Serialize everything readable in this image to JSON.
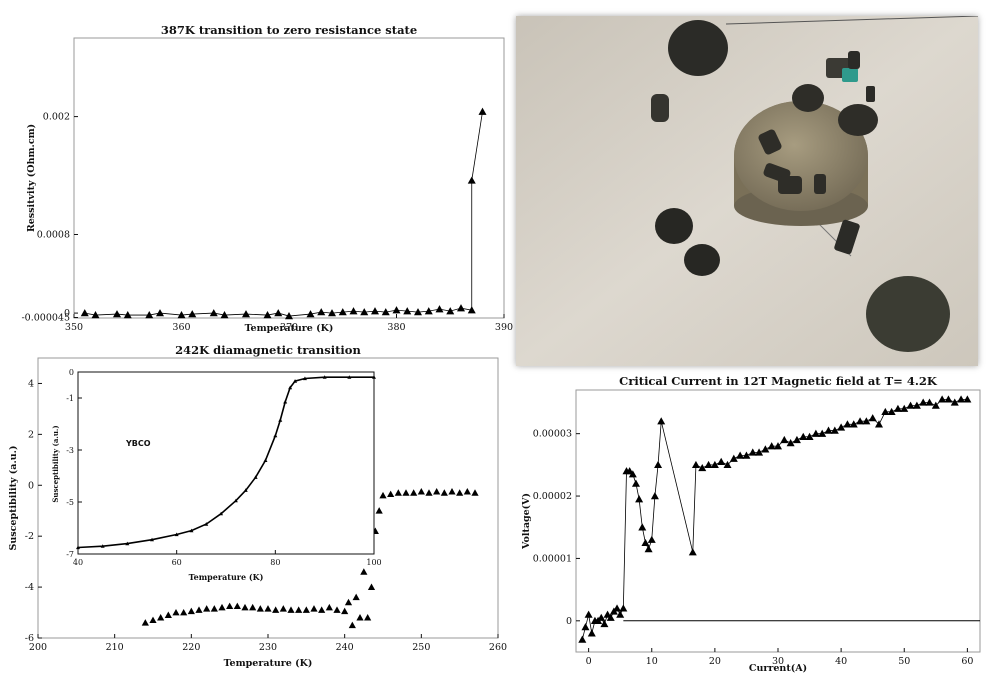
{
  "chart_data": [
    {
      "id": "resistivity",
      "type": "scatter",
      "title": "387K transition to zero resistance state",
      "xlabel": "Temperature (K)",
      "ylabel": "Ressitvity (Ohm.cm)",
      "xlim": [
        350,
        390
      ],
      "ylim": [
        -5e-05,
        0.0028
      ],
      "xticks": [
        350,
        360,
        370,
        380,
        390
      ],
      "yticks": [
        {
          "value": 0.002,
          "label": "0.002"
        },
        {
          "value": 0.0008,
          "label": "0.0008"
        },
        {
          "value": 0.0,
          "label": "0"
        },
        {
          "value": -4.5e-05,
          "label": "-0.000045"
        }
      ],
      "x": [
        351,
        352,
        354,
        355,
        357,
        358,
        360,
        361,
        363,
        364,
        366,
        368,
        369,
        370,
        372,
        373,
        374,
        375,
        376,
        377,
        378,
        379,
        380,
        381,
        382,
        383,
        384,
        385,
        386,
        387,
        387,
        388
      ],
      "y": [
        0.0,
        -2e-05,
        -1e-05,
        -2e-05,
        -2e-05,
        0.0,
        -2e-05,
        -1e-05,
        0.0,
        -2e-05,
        -1e-05,
        -2e-05,
        0.0,
        -3e-05,
        -1e-05,
        1e-05,
        0.0,
        1e-05,
        2e-05,
        1e-05,
        2e-05,
        1e-05,
        3e-05,
        2e-05,
        1e-05,
        2e-05,
        4e-05,
        2e-05,
        5e-05,
        3e-05,
        0.00135,
        0.00205
      ]
    },
    {
      "id": "susceptibility",
      "type": "scatter",
      "title": "242K diamagnetic transition",
      "xlabel": "Temperature (K)",
      "ylabel": "Susceptibility (a.u.)",
      "xlim": [
        200,
        260
      ],
      "ylim": [
        -6,
        5
      ],
      "xticks": [
        200,
        210,
        220,
        230,
        240,
        250,
        260
      ],
      "yticks": [
        4,
        2,
        0,
        -2,
        -4,
        -6
      ],
      "x": [
        214,
        215,
        216,
        217,
        218,
        219,
        220,
        221,
        222,
        223,
        224,
        225,
        226,
        227,
        228,
        229,
        230,
        231,
        232,
        233,
        234,
        235,
        236,
        237,
        238,
        239,
        240,
        240.5,
        241,
        241.5,
        242,
        242.5,
        243,
        243.5,
        244,
        244.5,
        245,
        246,
        247,
        248,
        249,
        250,
        251,
        252,
        253,
        254,
        255,
        256,
        257
      ],
      "y": [
        -5.4,
        -5.3,
        -5.2,
        -5.1,
        -5.0,
        -5.0,
        -4.95,
        -4.9,
        -4.85,
        -4.85,
        -4.8,
        -4.75,
        -4.75,
        -4.8,
        -4.8,
        -4.85,
        -4.85,
        -4.9,
        -4.85,
        -4.9,
        -4.9,
        -4.9,
        -4.85,
        -4.9,
        -4.8,
        -4.9,
        -4.95,
        -4.6,
        -5.5,
        -4.4,
        -5.2,
        -3.4,
        -5.2,
        -4.0,
        -1.8,
        -1.0,
        -0.4,
        -0.35,
        -0.3,
        -0.3,
        -0.3,
        -0.25,
        -0.3,
        -0.25,
        -0.3,
        -0.25,
        -0.3,
        -0.25,
        -0.3
      ]
    },
    {
      "id": "inset-ybco",
      "type": "line",
      "label": "YBCO",
      "xlabel": "Temperature (K)",
      "ylabel": "Susceptibility (a.u.)",
      "xlim": [
        40,
        100
      ],
      "ylim": [
        -7,
        0
      ],
      "xticks": [
        40,
        60,
        80,
        100
      ],
      "yticks": [
        0,
        -1,
        -3,
        -5,
        -7
      ],
      "x": [
        40,
        45,
        50,
        55,
        60,
        63,
        66,
        69,
        72,
        74,
        76,
        78,
        80,
        81,
        82,
        83,
        84,
        86,
        90,
        95,
        100
      ],
      "y": [
        -6.75,
        -6.7,
        -6.6,
        -6.45,
        -6.25,
        -6.1,
        -5.85,
        -5.45,
        -4.95,
        -4.55,
        -4.05,
        -3.4,
        -2.45,
        -1.85,
        -1.15,
        -0.6,
        -0.35,
        -0.25,
        -0.2,
        -0.2,
        -0.2
      ]
    },
    {
      "id": "critical-current",
      "type": "scatter",
      "title": "Critical Current in 12T Magnetic field at T= 4.2K",
      "xlabel": "Current(A)",
      "ylabel": "Voltage(V)",
      "xlim": [
        -2,
        62
      ],
      "ylim": [
        -5e-06,
        3.7e-05
      ],
      "xticks": [
        0,
        10,
        20,
        30,
        40,
        50,
        60
      ],
      "yticks": [
        {
          "value": 0.0,
          "label": "0"
        },
        {
          "value": 1e-05,
          "label": "0.00001"
        },
        {
          "value": 2e-05,
          "label": "0.00002"
        },
        {
          "value": 3e-05,
          "label": "0.00003"
        }
      ],
      "x": [
        -1,
        -0.5,
        0,
        0.5,
        1,
        1.5,
        2,
        2.5,
        3,
        3.5,
        4,
        4.5,
        5,
        5.5,
        6,
        6.5,
        7,
        7.5,
        8,
        8.5,
        9,
        9.5,
        10,
        10.5,
        11,
        11.5,
        16.5,
        17,
        18,
        19,
        20,
        21,
        22,
        23,
        24,
        25,
        26,
        27,
        28,
        29,
        30,
        31,
        32,
        33,
        34,
        35,
        36,
        37,
        38,
        39,
        40,
        41,
        42,
        43,
        44,
        45,
        46,
        47,
        48,
        49,
        50,
        51,
        52,
        53,
        54,
        55,
        56,
        57,
        58,
        59,
        60
      ],
      "y": [
        -3e-06,
        -1e-06,
        1e-06,
        -2e-06,
        0.0,
        0.0,
        5e-07,
        -5e-07,
        1e-06,
        5e-07,
        1.5e-06,
        2e-06,
        1e-06,
        2e-06,
        2.4e-05,
        2.4e-05,
        2.35e-05,
        2.2e-05,
        1.95e-05,
        1.5e-05,
        1.25e-05,
        1.15e-05,
        1.3e-05,
        2e-05,
        2.5e-05,
        3.2e-05,
        1.1e-05,
        2.5e-05,
        2.45e-05,
        2.5e-05,
        2.5e-05,
        2.55e-05,
        2.5e-05,
        2.6e-05,
        2.65e-05,
        2.65e-05,
        2.7e-05,
        2.7e-05,
        2.75e-05,
        2.8e-05,
        2.8e-05,
        2.9e-05,
        2.85e-05,
        2.9e-05,
        2.95e-05,
        2.95e-05,
        3e-05,
        3e-05,
        3.05e-05,
        3.05e-05,
        3.1e-05,
        3.15e-05,
        3.15e-05,
        3.2e-05,
        3.2e-05,
        3.25e-05,
        3.15e-05,
        3.35e-05,
        3.35e-05,
        3.4e-05,
        3.4e-05,
        3.45e-05,
        3.45e-05,
        3.5e-05,
        3.5e-05,
        3.45e-05,
        3.55e-05,
        3.55e-05,
        3.5e-05,
        3.55e-05,
        3.55e-05
      ]
    }
  ],
  "photo": {
    "subject": "superconducting-sample-pieces",
    "background_color": "#d8d3c8",
    "disc_color": "#3a3a34",
    "holder_color": "#8a8068"
  }
}
